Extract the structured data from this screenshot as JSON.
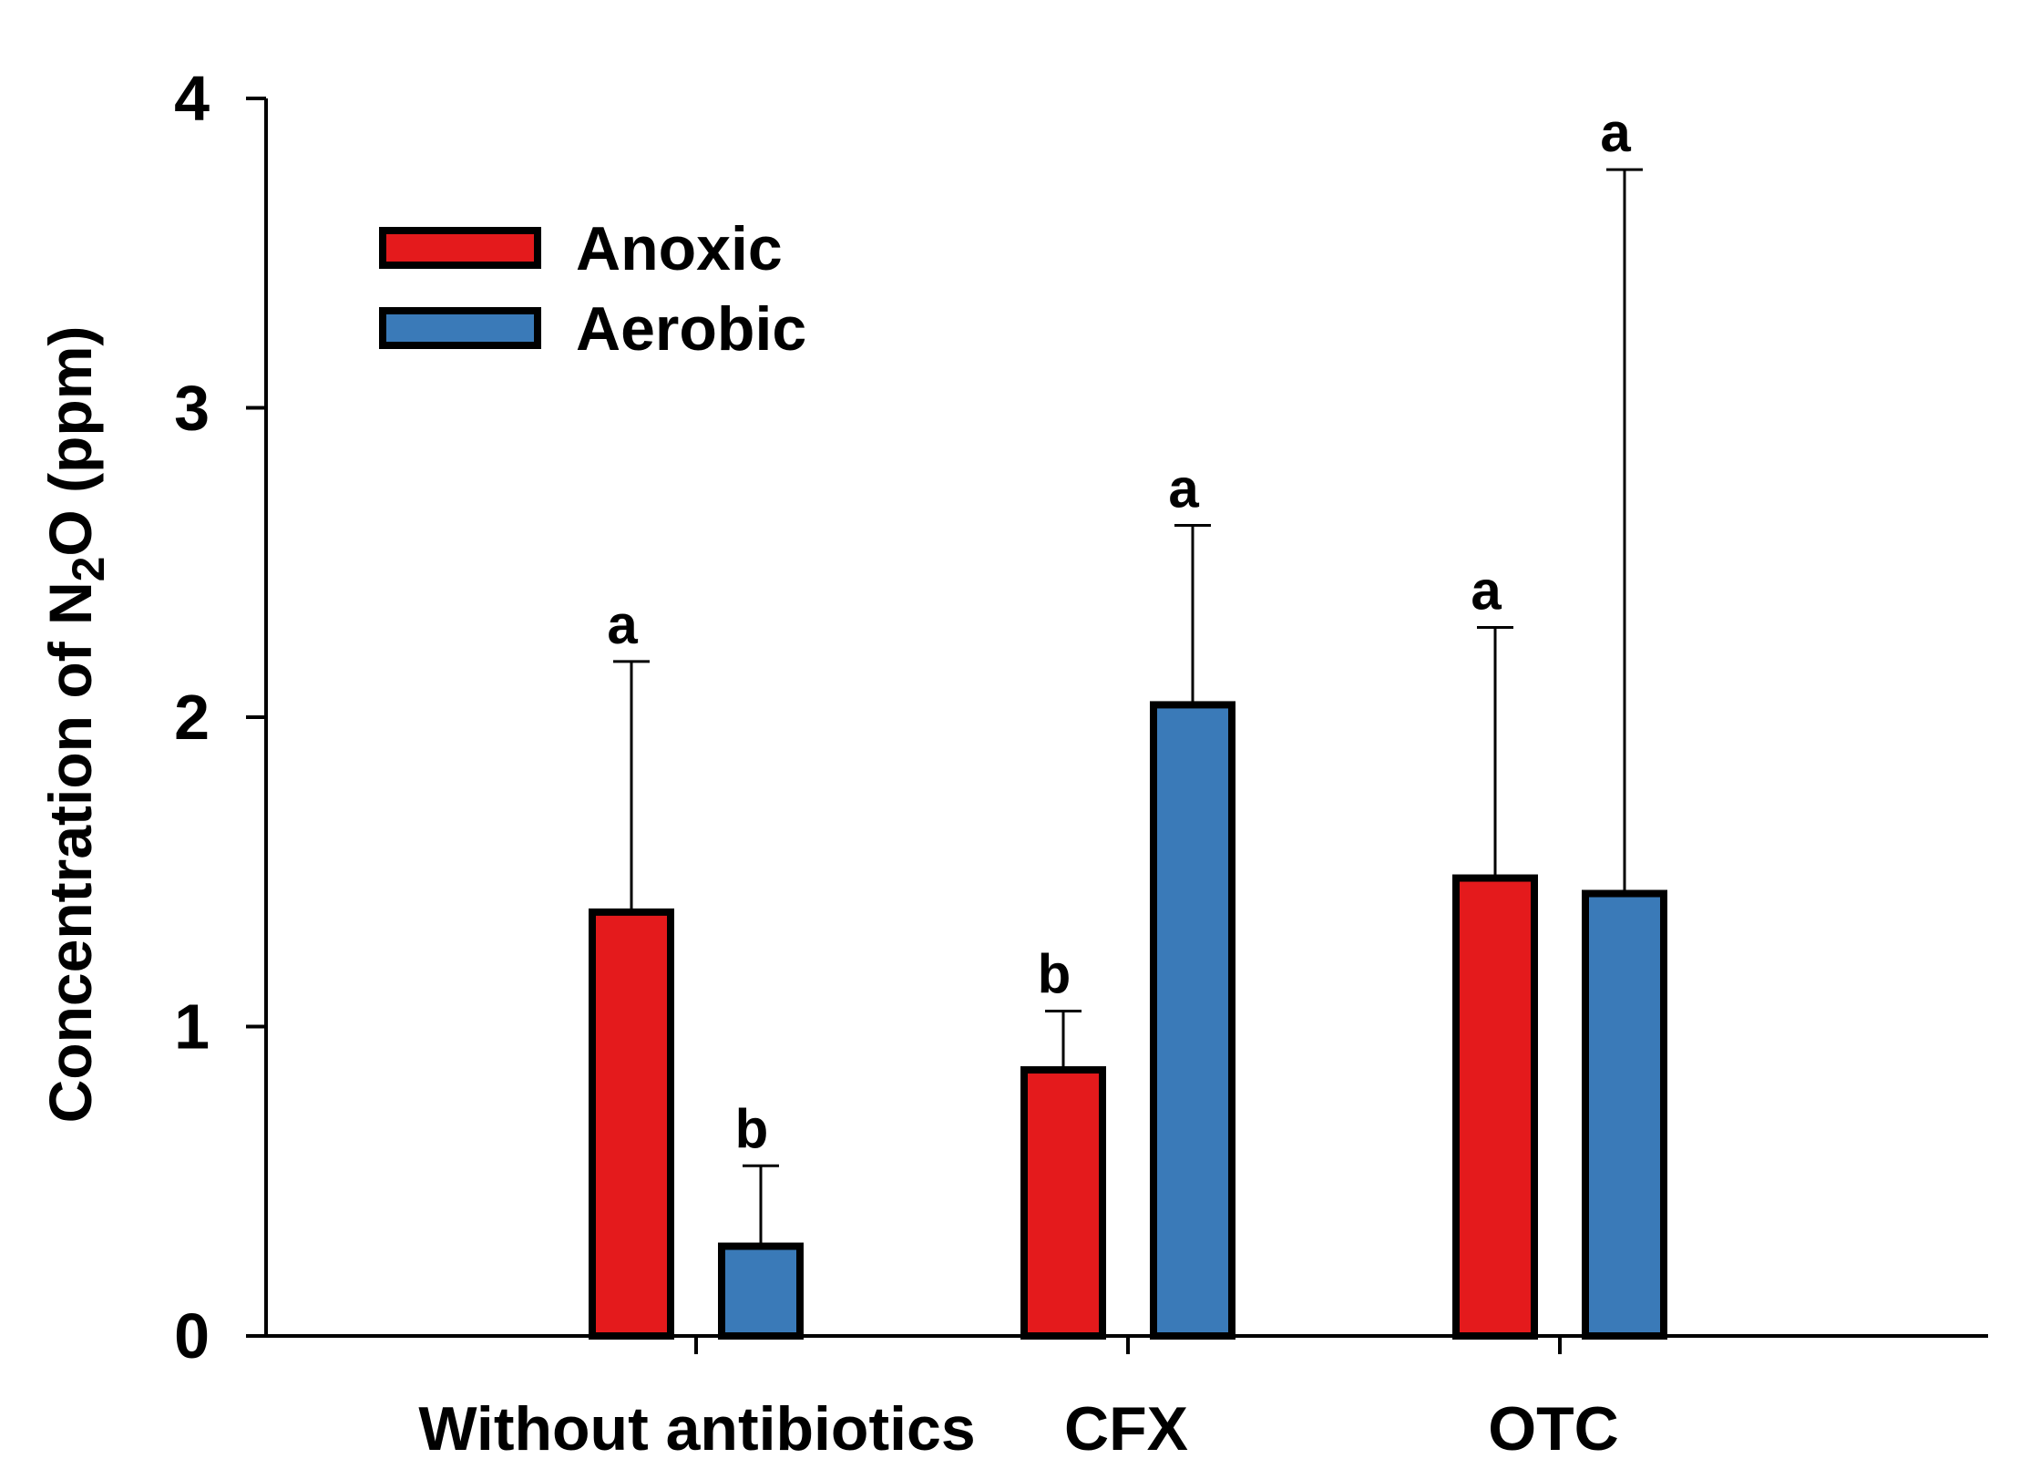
{
  "chart_data": {
    "type": "bar",
    "title": "",
    "xlabel": "",
    "ylabel": {
      "prefix": "Concentration of N",
      "subscript": "2",
      "suffix": "O (ppm)"
    },
    "ylim": [
      0,
      4
    ],
    "yticks": [
      "0",
      "1",
      "2",
      "3",
      "4"
    ],
    "categories": [
      "Without antibiotics",
      "CFX",
      "OTC"
    ],
    "legend_position": "top-left",
    "series": [
      {
        "name": "Anoxic",
        "color": "#e41a1c",
        "values": [
          1.37,
          0.86,
          1.48
        ],
        "errors": [
          0.81,
          0.19,
          0.81
        ],
        "letters": [
          "a",
          "b",
          "a"
        ]
      },
      {
        "name": "Aerobic",
        "color": "#3a7ab8",
        "values": [
          0.29,
          2.04,
          1.43
        ],
        "errors": [
          0.26,
          0.58,
          2.34
        ],
        "letters": [
          "b",
          "a",
          "a"
        ]
      }
    ]
  }
}
